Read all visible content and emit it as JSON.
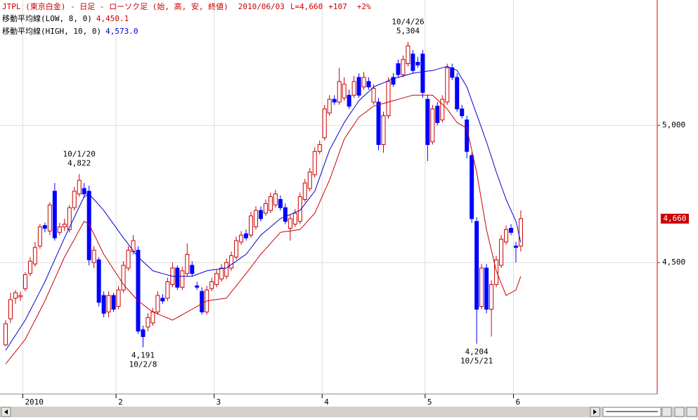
{
  "chart_data": {
    "type": "candlestick",
    "title": "JTPL (東京白金) - 日足 - ローソク足 (始, 高, 安, 終値)",
    "date": "2010/06/03",
    "last": "L=4,660",
    "change": "+107",
    "change_pct": "+2%",
    "header_color": "#cc0000",
    "up_color": "#cc0000",
    "down_color": "#0000ff",
    "grid": true,
    "xlim": [
      -1.15,
      132.8
    ],
    "ylim": [
      4021,
      5457
    ],
    "xticks": [
      {
        "value": 4,
        "label": "2010"
      },
      {
        "value": 23,
        "label": "2"
      },
      {
        "value": 43,
        "label": "3"
      },
      {
        "value": 65,
        "label": "4"
      },
      {
        "value": 86,
        "label": "5"
      },
      {
        "value": 104,
        "label": "6"
      }
    ],
    "yticks": [
      {
        "value": 4500,
        "label": "4,500"
      },
      {
        "value": 5000,
        "label": "5,000"
      }
    ],
    "last_price": {
      "value": 4660,
      "label": "4,660"
    },
    "open": [
      4200,
      4295,
      4370,
      4375,
      4405,
      4460,
      4495,
      4560,
      4635,
      4615,
      4760,
      4610,
      4630,
      4620,
      4700,
      4750,
      4770,
      4760,
      4500,
      4510,
      4380,
      4320,
      4380,
      4340,
      4400,
      4480,
      4540,
      4545,
      4255,
      4265,
      4280,
      4320,
      4370,
      4370,
      4420,
      4480,
      4410,
      4460,
      4490,
      4415,
      4395,
      4320,
      4405,
      4420,
      4440,
      4450,
      4480,
      4520,
      4575,
      4605,
      4600,
      4630,
      4690,
      4680,
      4690,
      4710,
      4730,
      4700,
      4625,
      4640,
      4650,
      4730,
      4770,
      4820,
      4905,
      4955,
      5045,
      5095,
      5085,
      5100,
      5110,
      5110,
      5175,
      5140,
      5160,
      5085,
      5085,
      4930,
      5035,
      5175,
      5225,
      5185,
      5225,
      5260,
      5230,
      5260,
      5095,
      4940,
      5070,
      5020,
      5085,
      5210,
      5175,
      5060,
      5020,
      4890,
      4650,
      4340,
      4480,
      4330,
      4420,
      4490,
      4575,
      4625,
      4560,
      4560
    ],
    "high": [
      4290,
      4390,
      4400,
      4395,
      4465,
      4520,
      4575,
      4640,
      4645,
      4720,
      4790,
      4645,
      4660,
      4710,
      4775,
      4822,
      4790,
      4780,
      4560,
      4520,
      4395,
      4395,
      4390,
      4415,
      4505,
      4560,
      4600,
      4560,
      4270,
      4315,
      4335,
      4395,
      4385,
      4445,
      4500,
      4490,
      4485,
      4570,
      4505,
      4430,
      4410,
      4415,
      4445,
      4475,
      4495,
      4515,
      4540,
      4595,
      4615,
      4620,
      4685,
      4705,
      4705,
      4730,
      4755,
      4765,
      4745,
      4715,
      4675,
      4695,
      4755,
      4805,
      4845,
      4920,
      4945,
      5075,
      5110,
      5110,
      5210,
      5175,
      5130,
      5180,
      5190,
      5195,
      5175,
      5150,
      5100,
      5050,
      5175,
      5190,
      5240,
      5255,
      5304,
      5275,
      5250,
      5275,
      5110,
      5075,
      5085,
      5110,
      5225,
      5225,
      5190,
      5075,
      5035,
      4900,
      4665,
      4495,
      4495,
      4435,
      4525,
      4600,
      4635,
      4640,
      4575,
      4690
    ],
    "low": [
      4195,
      4280,
      4350,
      4360,
      4395,
      4450,
      4485,
      4550,
      4610,
      4600,
      4580,
      4600,
      4615,
      4610,
      4690,
      4740,
      4735,
      4490,
      4480,
      4340,
      4300,
      4300,
      4320,
      4330,
      4390,
      4470,
      4530,
      4240,
      4191,
      4250,
      4270,
      4310,
      4350,
      4360,
      4410,
      4400,
      4400,
      4450,
      4450,
      4400,
      4310,
      4310,
      4395,
      4410,
      4430,
      4440,
      4470,
      4510,
      4565,
      4580,
      4590,
      4620,
      4650,
      4670,
      4680,
      4700,
      4690,
      4640,
      4580,
      4630,
      4640,
      4720,
      4760,
      4810,
      4895,
      4945,
      5035,
      5075,
      5075,
      5090,
      5060,
      5100,
      5100,
      5130,
      5130,
      5075,
      4910,
      4900,
      5025,
      5140,
      5175,
      5175,
      5215,
      5190,
      5210,
      5100,
      4870,
      4930,
      5000,
      5010,
      5075,
      5165,
      5050,
      5025,
      4880,
      4645,
      4204,
      4330,
      4315,
      4230,
      4410,
      4480,
      4565,
      4600,
      4500,
      4540
    ],
    "close": [
      4277,
      4365,
      4390,
      4380,
      4456,
      4505,
      4555,
      4630,
      4625,
      4710,
      4590,
      4630,
      4640,
      4700,
      4760,
      4800,
      4750,
      4510,
      4545,
      4355,
      4315,
      4380,
      4330,
      4400,
      4490,
      4545,
      4580,
      4250,
      4230,
      4300,
      4320,
      4380,
      4360,
      4430,
      4480,
      4410,
      4470,
      4530,
      4460,
      4410,
      4320,
      4400,
      4430,
      4460,
      4480,
      4500,
      4525,
      4580,
      4600,
      4590,
      4670,
      4690,
      4660,
      4715,
      4740,
      4750,
      4700,
      4650,
      4660,
      4680,
      4740,
      4790,
      4830,
      4905,
      4930,
      5060,
      5095,
      5085,
      5160,
      5150,
      5070,
      5160,
      5110,
      5175,
      5140,
      5135,
      4930,
      5035,
      5160,
      5150,
      5185,
      5240,
      5290,
      5200,
      5220,
      5120,
      4930,
      5060,
      5010,
      5095,
      5210,
      5175,
      5060,
      5035,
      4905,
      4660,
      4330,
      4480,
      4330,
      4420,
      4510,
      4585,
      4620,
      4610,
      4555,
      4660
    ],
    "series": [
      {
        "name": "移動平均線(LOW, 8, 0)",
        "legend_value": "4,450.1",
        "color": "#cc0000",
        "values": [
          4130,
          4153,
          4175,
          4198,
          4220,
          4255,
          4290,
          4325,
          4360,
          4400,
          4440,
          4480,
          4520,
          4553,
          4585,
          4618,
          4650,
          4640,
          4603,
          4567,
          4530,
          4503,
          4475,
          4448,
          4420,
          4400,
          4380,
          4360,
          4347,
          4333,
          4320,
          4313,
          4305,
          4298,
          4290,
          4300,
          4310,
          4320,
          4330,
          4340,
          4350,
          4360,
          4363,
          4365,
          4368,
          4370,
          4393,
          4415,
          4438,
          4460,
          4483,
          4507,
          4530,
          4550,
          4570,
          4590,
          4610,
          4613,
          4615,
          4618,
          4620,
          4640,
          4660,
          4680,
          4720,
          4760,
          4800,
          4850,
          4900,
          4950,
          4977,
          5003,
          5030,
          5043,
          5057,
          5070,
          5075,
          5080,
          5085,
          5090,
          5095,
          5100,
          5105,
          5110,
          5110,
          5110,
          5110,
          5110,
          5093,
          5077,
          5060,
          5035,
          5010,
          5000,
          4990,
          4910,
          4830,
          4725,
          4620,
          4545,
          4470,
          4425,
          4380,
          4390,
          4400,
          4450.1
        ]
      },
      {
        "name": "移動平均線(HIGH, 10, 0)",
        "legend_value": "4,573.0",
        "color": "#0000cc",
        "values": [
          4180,
          4208,
          4235,
          4263,
          4290,
          4325,
          4360,
          4395,
          4430,
          4470,
          4510,
          4550,
          4590,
          4628,
          4665,
          4703,
          4740,
          4750,
          4730,
          4710,
          4690,
          4665,
          4640,
          4615,
          4590,
          4567,
          4543,
          4520,
          4503,
          4487,
          4470,
          4465,
          4460,
          4455,
          4450,
          4450,
          4450,
          4450,
          4450,
          4457,
          4463,
          4470,
          4473,
          4475,
          4478,
          4480,
          4493,
          4505,
          4518,
          4530,
          4553,
          4577,
          4600,
          4615,
          4630,
          4645,
          4660,
          4668,
          4675,
          4683,
          4690,
          4713,
          4737,
          4760,
          4810,
          4860,
          4910,
          4943,
          4977,
          5010,
          5037,
          5063,
          5090,
          5107,
          5123,
          5140,
          5148,
          5155,
          5163,
          5170,
          5175,
          5180,
          5185,
          5190,
          5193,
          5195,
          5198,
          5200,
          5205,
          5210,
          5215,
          5208,
          5200,
          5170,
          5140,
          5090,
          5040,
          4990,
          4940,
          4885,
          4830,
          4780,
          4730,
          4690,
          4650,
          4573
        ]
      }
    ],
    "annotations": [
      {
        "date": "10/1/20",
        "value": 4822,
        "value_label": "4,822"
      },
      {
        "date": "10/2/8",
        "value": 4191,
        "value_label": "4,191"
      },
      {
        "date": "10/4/26",
        "value": 5304,
        "value_label": "5,304"
      },
      {
        "date": "10/5/21",
        "value": 4204,
        "value_label": "4,204"
      }
    ]
  }
}
